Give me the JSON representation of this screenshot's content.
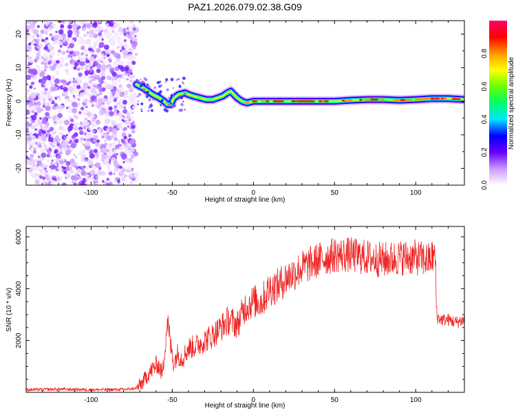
{
  "title": "PAZ1.2026.079.02.38.G09",
  "chart_data": [
    {
      "type": "heatmap",
      "name": "spectrogram",
      "xlabel": "Height of straight line (km)",
      "ylabel": "Frequency (Hz)",
      "xlim": [
        -140,
        130
      ],
      "ylim": [
        -25,
        24
      ],
      "xticks": [
        -100,
        -50,
        0,
        50,
        100
      ],
      "xtick_labels": [
        "-100",
        "-50",
        "0",
        "50",
        "100"
      ],
      "yticks": [
        20,
        10,
        0,
        -10,
        -20
      ],
      "ytick_labels": [
        "20",
        "10",
        "0",
        "-10",
        "-20"
      ],
      "noise_region_x": [
        -140,
        -72
      ],
      "ridge": [
        {
          "x": -72,
          "y": 5
        },
        {
          "x": -68,
          "y": 4
        },
        {
          "x": -65,
          "y": 3
        },
        {
          "x": -62,
          "y": 2
        },
        {
          "x": -58,
          "y": 1
        },
        {
          "x": -55,
          "y": 0
        },
        {
          "x": -53,
          "y": -1
        },
        {
          "x": -51,
          "y": -1
        },
        {
          "x": -49,
          "y": 1
        },
        {
          "x": -46,
          "y": 2
        },
        {
          "x": -42,
          "y": 2.5
        },
        {
          "x": -40,
          "y": 2
        },
        {
          "x": -37,
          "y": 1.5
        },
        {
          "x": -33,
          "y": 1
        },
        {
          "x": -29,
          "y": 0.5
        },
        {
          "x": -25,
          "y": 0.5
        },
        {
          "x": -22,
          "y": 1
        },
        {
          "x": -19,
          "y": 1.5
        },
        {
          "x": -16,
          "y": 2.5
        },
        {
          "x": -14,
          "y": 3
        },
        {
          "x": -12,
          "y": 2
        },
        {
          "x": -10,
          "y": 1
        },
        {
          "x": -7,
          "y": 0
        },
        {
          "x": -4,
          "y": -0.5
        },
        {
          "x": 0,
          "y": 0
        },
        {
          "x": 10,
          "y": 0
        },
        {
          "x": 20,
          "y": 0
        },
        {
          "x": 30,
          "y": 0
        },
        {
          "x": 40,
          "y": 0
        },
        {
          "x": 50,
          "y": 0
        },
        {
          "x": 60,
          "y": 0.3
        },
        {
          "x": 70,
          "y": 0.5
        },
        {
          "x": 80,
          "y": 0.5
        },
        {
          "x": 90,
          "y": 0.3
        },
        {
          "x": 100,
          "y": 0.5
        },
        {
          "x": 110,
          "y": 0.8
        },
        {
          "x": 120,
          "y": 0.8
        },
        {
          "x": 130,
          "y": 0.5
        }
      ],
      "colorbar": {
        "label": "Normalized spectral amplitude",
        "range": [
          0,
          1
        ],
        "ticks": [
          0.0,
          0.2,
          0.4,
          0.6,
          0.8
        ],
        "tick_labels": [
          "0.0",
          "0.2",
          "0.4",
          "0.6",
          "0.8"
        ],
        "colors": [
          "#ffffff",
          "#cc99ff",
          "#6600ff",
          "#0000ff",
          "#00e5ff",
          "#00ff66",
          "#66ff00",
          "#ffff00",
          "#ff9900",
          "#ff0000",
          "#ff0066"
        ]
      }
    },
    {
      "type": "line",
      "name": "snr",
      "xlabel": "Height of straight line (km)",
      "ylabel": "SNR (10 * v/v)",
      "xlim": [
        -140,
        130
      ],
      "ylim": [
        0,
        6400
      ],
      "xticks": [
        -100,
        -50,
        0,
        50,
        100
      ],
      "xtick_labels": [
        "-100",
        "-50",
        "0",
        "50",
        "100"
      ],
      "yticks": [
        2000,
        4000,
        6000
      ],
      "ytick_labels": [
        "2000",
        "4000",
        "6000"
      ],
      "color": "#ee2222",
      "series": [
        {
          "name": "SNR",
          "x": [
            -140,
            -120,
            -100,
            -80,
            -72,
            -68,
            -65,
            -62,
            -59,
            -56,
            -53,
            -51,
            -49,
            -47,
            -44,
            -40,
            -35,
            -30,
            -25,
            -20,
            -15,
            -10,
            -5,
            0,
            5,
            10,
            15,
            20,
            25,
            30,
            40,
            50,
            60,
            70,
            80,
            90,
            100,
            108,
            112,
            113,
            116,
            120,
            125,
            130
          ],
          "y": [
            100,
            120,
            100,
            110,
            150,
            400,
            700,
            900,
            1100,
            700,
            2800,
            1800,
            1100,
            1500,
            1300,
            1700,
            1800,
            2000,
            2200,
            2500,
            2800,
            2600,
            3300,
            3500,
            3500,
            4000,
            4100,
            4400,
            4600,
            4800,
            5100,
            5300,
            5300,
            5200,
            5100,
            5200,
            5200,
            5100,
            5300,
            2900,
            2800,
            2800,
            2700,
            2800
          ],
          "noise_amplitude_max": 700
        }
      ]
    }
  ]
}
